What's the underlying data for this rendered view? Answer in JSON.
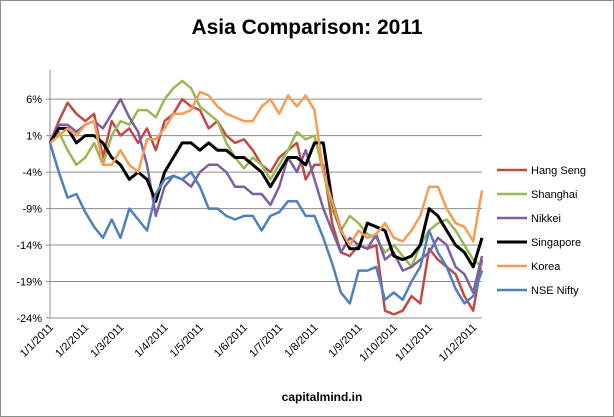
{
  "chart_data": {
    "type": "line",
    "title": "Asia Comparison: 2011",
    "footer": "capitalmind.in",
    "xlabel": "",
    "ylabel": "",
    "ylim": [
      -24,
      10
    ],
    "y_ticks": [
      "6%",
      "1%",
      "-4%",
      "-9%",
      "-14%",
      "-19%",
      "-24%"
    ],
    "y_tick_values": [
      6,
      1,
      -4,
      -9,
      -14,
      -19,
      -24
    ],
    "x_tick_labels": [
      "1/1/2011",
      "1/2/2011",
      "1/3/2011",
      "1/4/2011",
      "1/5/2011",
      "1/6/2011",
      "1/7/2011",
      "1/8/2011",
      "1/9/2011",
      "1/10/2011",
      "1/11/2011",
      "1/12/2011"
    ],
    "x_tick_positions": [
      0,
      4,
      8,
      13,
      17,
      22,
      26,
      30,
      35,
      39,
      43,
      48
    ],
    "grid": "horizontal",
    "legend": "right",
    "series": [
      {
        "name": "Hang Seng",
        "color": "#be4b48",
        "values": [
          0,
          3,
          5.5,
          4,
          3,
          4,
          -2,
          3,
          1,
          2,
          0,
          2,
          -1,
          3,
          4,
          6,
          5,
          4.5,
          2,
          3,
          1,
          0,
          0.5,
          -1,
          -3,
          -4,
          -2,
          -1,
          0,
          -5,
          -3,
          -3,
          -11,
          -15,
          -15.5,
          -14,
          -14.5,
          -14,
          -23,
          -23.5,
          -23,
          -21,
          -22,
          -14.5,
          -16,
          -17,
          -18,
          -21,
          -23,
          -16
        ]
      },
      {
        "name": "Shanghai",
        "color": "#98b954",
        "values": [
          0,
          1.5,
          -1,
          -3,
          -2,
          0,
          -3,
          1,
          3,
          2.5,
          4.5,
          4.5,
          3.5,
          6,
          7.5,
          8.5,
          7.5,
          5,
          4,
          3,
          0,
          -2,
          -3.5,
          -2,
          -3,
          -5,
          -3,
          -1,
          1.5,
          0.5,
          1,
          -4,
          -9,
          -12,
          -10,
          -11,
          -12.5,
          -13,
          -15,
          -14,
          -15.5,
          -17,
          -14,
          -12,
          -11,
          -10.5,
          -12,
          -14,
          -16,
          -17
        ]
      },
      {
        "name": "Nikkei",
        "color": "#7d60a0",
        "values": [
          0,
          2.5,
          2.5,
          1.5,
          2.5,
          3,
          2,
          4,
          6,
          3.5,
          1.5,
          -3,
          -10,
          -6,
          -4.5,
          -5,
          -6,
          -4,
          -3,
          -3,
          -4,
          -6,
          -6,
          -7,
          -7,
          -8.5,
          -6,
          -2,
          -4,
          -1,
          -5,
          -9,
          -12,
          -15,
          -13,
          -14,
          -14.5,
          -12.5,
          -16,
          -15,
          -17.5,
          -17,
          -16,
          -15,
          -13,
          -14,
          -17,
          -18,
          -20.5,
          -15.5
        ]
      },
      {
        "name": "Singapore",
        "color": "#000000",
        "values": [
          0,
          2,
          2,
          0,
          1,
          1,
          0,
          -2,
          -3,
          -5,
          -4,
          -5,
          -8,
          -4,
          -2,
          0,
          0,
          -1,
          0,
          -1,
          -1,
          -2,
          -2,
          -3,
          -4,
          -6,
          -4,
          -2,
          -2,
          -3,
          0,
          0,
          -8,
          -12,
          -14.5,
          -14.5,
          -11,
          -11.5,
          -12,
          -15.5,
          -16,
          -15.5,
          -14,
          -9,
          -10,
          -12,
          -14,
          -15,
          -17,
          -13
        ]
      },
      {
        "name": "Korea",
        "color": "#f59d56",
        "values": [
          0,
          1,
          2,
          1,
          2.5,
          3,
          -3,
          -3,
          -1,
          -3,
          -4,
          0.5,
          0.5,
          2,
          4,
          4,
          4.5,
          7,
          6.5,
          5,
          4,
          3.5,
          3,
          3,
          5,
          6,
          4,
          6.5,
          5,
          6.5,
          4.5,
          -4,
          -8,
          -12,
          -14,
          -12,
          -13,
          -12.5,
          -11,
          -13,
          -13.5,
          -12,
          -10,
          -6,
          -6,
          -9,
          -11,
          -11.5,
          -13.5,
          -6.5
        ]
      },
      {
        "name": "NSE Nifty",
        "color": "#4f7fbd",
        "values": [
          0,
          -4,
          -7.5,
          -7,
          -9.5,
          -11.5,
          -13,
          -10.5,
          -13,
          -9,
          -10.5,
          -12,
          -7,
          -5,
          -4.5,
          -5,
          -4,
          -6,
          -9,
          -9,
          -10,
          -10.5,
          -10,
          -10,
          -12,
          -10,
          -9.5,
          -8,
          -8,
          -10,
          -10,
          -13,
          -16.5,
          -20.5,
          -22,
          -17.5,
          -17.5,
          -17,
          -21.5,
          -20.5,
          -21.5,
          -19,
          -17,
          -12,
          -15,
          -17,
          -20,
          -22,
          -21,
          -17.5
        ]
      }
    ]
  }
}
